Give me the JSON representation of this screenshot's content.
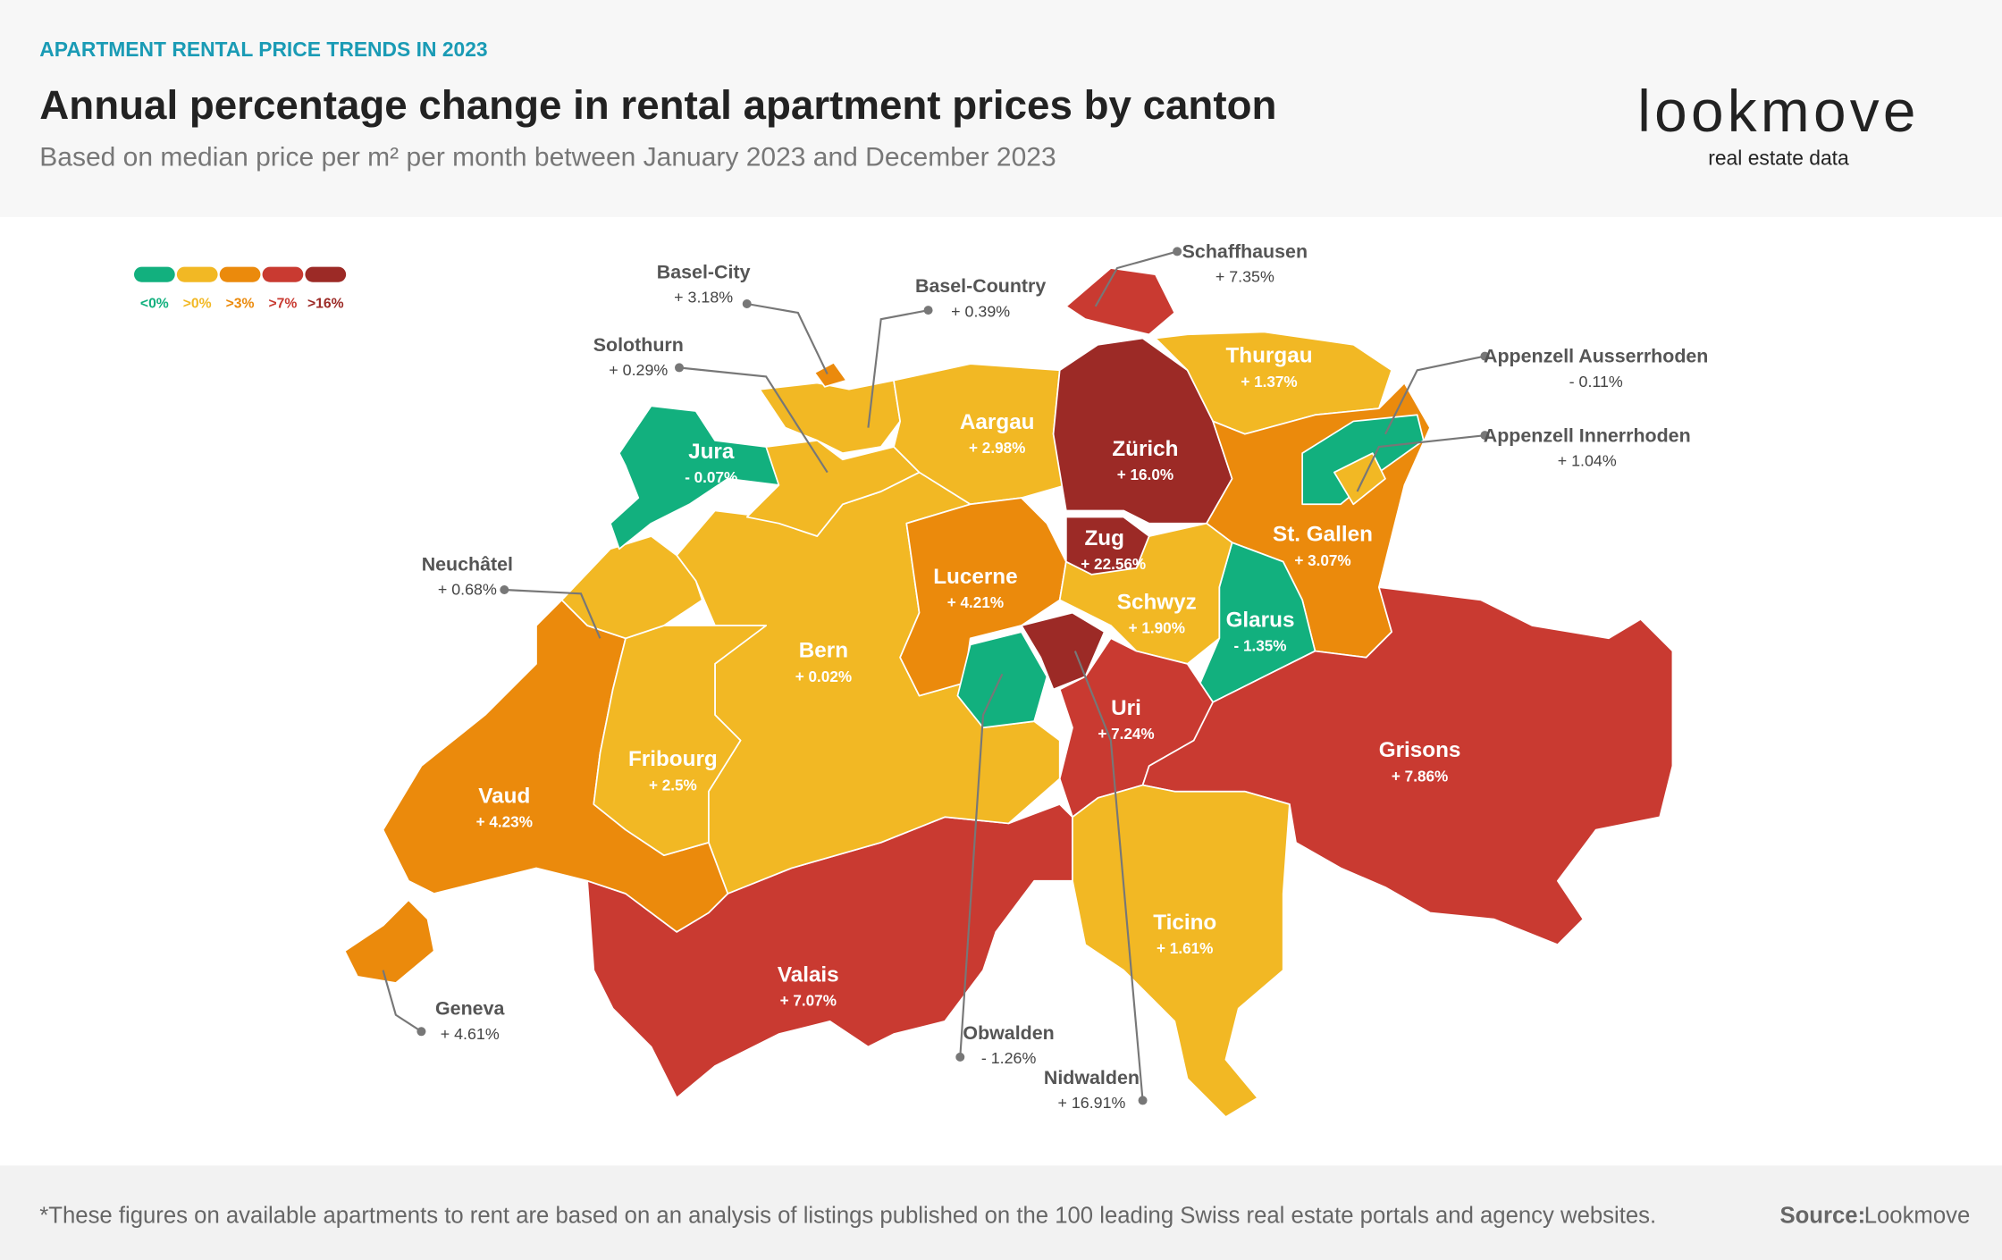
{
  "header": {
    "kicker": "APARTMENT RENTAL PRICE TRENDS IN 2023",
    "title": "Annual percentage change in rental apartment prices by canton",
    "subtitle": "Based on median price per m² per month between January 2023 and December 2023"
  },
  "logo": {
    "name": "lookmove",
    "tagline": "real estate data"
  },
  "legend": {
    "items": [
      {
        "value": 0,
        "label": "<0%"
      },
      {
        "value": 0,
        "label": ">0%"
      },
      {
        "value": 3,
        "label": ">3%"
      },
      {
        "value": 7,
        "label": ">7%"
      },
      {
        "value": 16,
        "label": ">16%"
      }
    ],
    "colors": [
      "#12b07e",
      "#f2b824",
      "#eb8a0c",
      "#c93a31",
      "#9c2a26"
    ]
  },
  "map": {
    "cantons": [
      "Jura",
      "Basel-City",
      "Basel-Country",
      "Solothurn",
      "Aargau",
      "Zürich",
      "Schaffhausen",
      "Thurgau",
      "Appenzell Ausserrhoden",
      "Appenzell Innerrhoden",
      "St. Gallen",
      "Glarus",
      "Zug",
      "Lucerne",
      "Schwyz",
      "Obwalden",
      "Nidwalden",
      "Uri",
      "Grisons",
      "Ticino",
      "Valais",
      "Bern",
      "Neuchâtel",
      "Fribourg",
      "Vaud",
      "Geneva"
    ],
    "values": [
      -0.07,
      3.18,
      0.39,
      0.29,
      2.98,
      16.0,
      7.35,
      1.37,
      -0.11,
      1.04,
      3.07,
      -1.35,
      22.56,
      4.21,
      1.9,
      -1.26,
      16.91,
      7.24,
      7.86,
      1.61,
      7.07,
      0.02,
      0.68,
      2.5,
      4.23,
      4.61
    ],
    "value_labels": [
      "- 0.07%",
      "+ 3.18%",
      "+ 0.39%",
      "+ 0.29%",
      "+ 2.98%",
      "+ 16.0%",
      "+ 7.35%",
      "+ 1.37%",
      "- 0.11%",
      "+ 1.04%",
      "+ 3.07%",
      "- 1.35%",
      "+ 22.56%",
      "+ 4.21%",
      "+ 1.90%",
      "- 1.26%",
      "+ 16.91%",
      "+ 7.24%",
      "+ 7.86%",
      "+ 1.61%",
      "+ 7.07%",
      "+ 0.02%",
      "+ 0.68%",
      "+ 2.5%",
      "+ 4.23%",
      "+ 4.61%"
    ]
  },
  "footer": {
    "note": "*These figures on available apartments to rent are based on an analysis of listings published on the 100 leading Swiss real estate portals and agency websites.",
    "source_label": "Source:",
    "source": "Lookmove"
  }
}
